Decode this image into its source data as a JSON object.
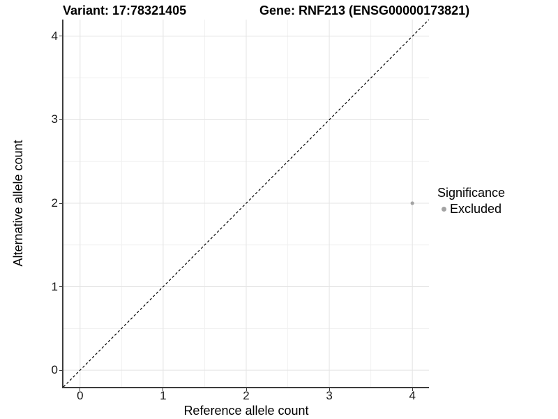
{
  "chart_data": {
    "type": "scatter",
    "title_left": "Variant: 17:78321405",
    "title_right": "Gene: RNF213 (ENSG00000173821)",
    "xlabel": "Reference allele count",
    "ylabel": "Alternative allele count",
    "xlim": [
      -0.2,
      4.2
    ],
    "ylim": [
      -0.2,
      4.2
    ],
    "x_ticks": [
      0,
      1,
      2,
      3,
      4
    ],
    "y_ticks": [
      0,
      1,
      2,
      3,
      4
    ],
    "minor_grid_step": 0.5,
    "grid": "major and minor gridlines on, white panel background",
    "legend": {
      "title": "Significance",
      "position": "right",
      "items": [
        {
          "label": "Excluded",
          "color": "#a3a3a3"
        }
      ]
    },
    "series": [
      {
        "name": "Excluded",
        "color": "#a3a3a3",
        "points": [
          {
            "x": 4,
            "y": 2
          }
        ]
      }
    ],
    "identity_line": {
      "slope": 1,
      "intercept": 0,
      "style": "dashed",
      "color": "#000000"
    }
  },
  "style": {
    "grid_major": "#e4e4e4",
    "grid_minor": "#f1f1f1",
    "axis_line": "#3c3c3c",
    "point_radius": 2.6,
    "background": "#ffffff"
  }
}
